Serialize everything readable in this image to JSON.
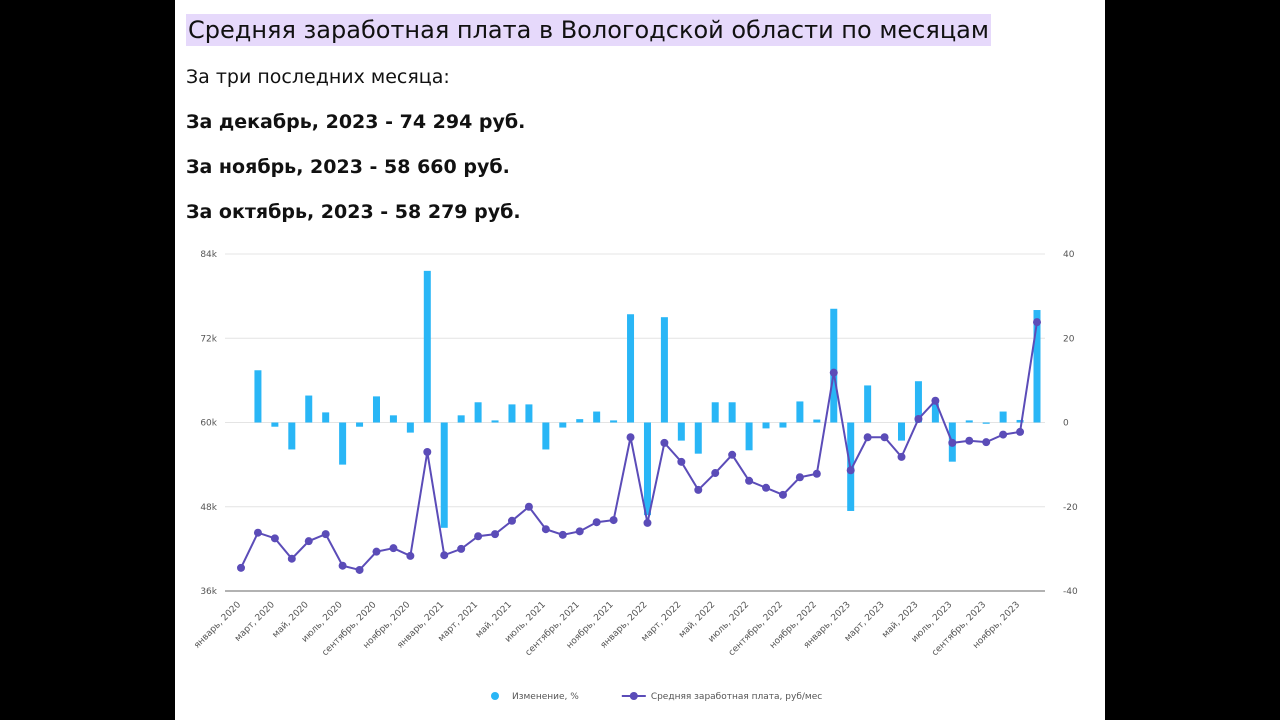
{
  "header": {
    "title": "Средняя заработная плата в Вологодской области по месяцам",
    "intro": "За три последних месяца:",
    "lines": [
      "За декабрь, 2023 - 74 294 руб.",
      "За ноябрь, 2023 - 58 660 руб.",
      "За октябрь, 2023 - 58 279 руб."
    ]
  },
  "chart_data": {
    "type": "combo",
    "categories": [
      "январь, 2020",
      null,
      "март, 2020",
      null,
      "май, 2020",
      null,
      "июль, 2020",
      null,
      "сентябрь, 2020",
      null,
      "ноябрь, 2020",
      null,
      "январь, 2021",
      null,
      "март, 2021",
      null,
      "май, 2021",
      null,
      "июль, 2021",
      null,
      "сентябрь, 2021",
      null,
      "ноябрь, 2021",
      null,
      "январь, 2022",
      null,
      "март, 2022",
      null,
      "май, 2022",
      null,
      "июль, 2022",
      null,
      "сентябрь, 2022",
      null,
      "ноябрь, 2022",
      null,
      "январь, 2023",
      null,
      "март, 2023",
      null,
      "май, 2023",
      null,
      "июль, 2023",
      null,
      "сентябрь, 2023",
      null,
      "ноябрь, 2023",
      null
    ],
    "series": [
      {
        "name": "Изменение, %",
        "type": "bar",
        "axis": "y2",
        "color": "#29b6f6",
        "values": [
          null,
          12.4,
          -1,
          -6.4,
          6.4,
          2.4,
          -10,
          -1,
          6.2,
          1.7,
          -2.4,
          36,
          -25,
          1.7,
          4.8,
          0.5,
          4.3,
          4.3,
          -6.4,
          -1.2,
          0.8,
          2.6,
          0.5,
          25.7,
          -22,
          25,
          -4.3,
          -7.4,
          4.8,
          4.8,
          -6.6,
          -1.4,
          -1.2,
          5,
          0.7,
          27,
          -21,
          8.8,
          0,
          -4.3,
          9.8,
          4.5,
          -9.3,
          0.5,
          -0.3,
          2.6,
          0.6,
          26.7
        ]
      },
      {
        "name": "Средняя заработная плата, руб/мес",
        "type": "line",
        "axis": "y",
        "color": "#5b4cb8",
        "values": [
          39300,
          44300,
          43500,
          40600,
          43100,
          44100,
          39600,
          39000,
          41600,
          42100,
          41000,
          55800,
          41100,
          42000,
          43800,
          44100,
          46000,
          48000,
          44800,
          44000,
          44500,
          45800,
          46100,
          57900,
          45700,
          57100,
          54400,
          50400,
          52800,
          55400,
          51700,
          50700,
          49700,
          52200,
          52700,
          67100,
          53200,
          57900,
          57900,
          55100,
          60500,
          63100,
          57100,
          57400,
          57200,
          58279,
          58660,
          74294
        ]
      }
    ],
    "ylim": [
      36000,
      84000
    ],
    "yticks": [
      {
        "value": 36000,
        "label": "36k"
      },
      {
        "value": 48000,
        "label": "48k"
      },
      {
        "value": 60000,
        "label": "60k"
      },
      {
        "value": 72000,
        "label": "72k"
      },
      {
        "value": 84000,
        "label": "84k"
      }
    ],
    "y2lim": [
      -40,
      40
    ],
    "y2ticks": [
      -40,
      -20,
      0,
      20,
      40
    ],
    "grid": true,
    "legend": "bottom"
  }
}
